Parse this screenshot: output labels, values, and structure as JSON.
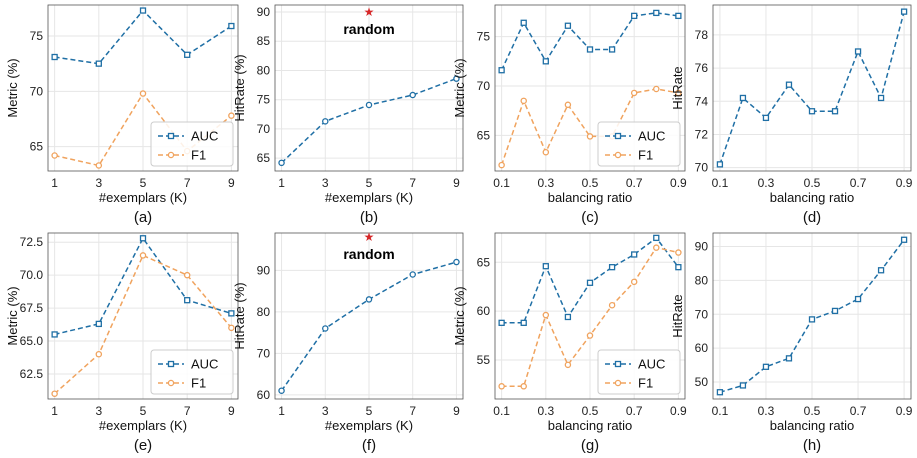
{
  "colors": {
    "auc": "#1f6fa5",
    "f1": "#f0a35e",
    "hitrate": "#1f6fa5",
    "star": "#d62728",
    "grid": "#e6e6e6"
  },
  "chart_data": [
    {
      "type": "line",
      "caption": "(a)",
      "xlabel": "#exemplars (K)",
      "ylabel": "Metric (%)",
      "x": [
        1,
        3,
        5,
        7,
        9
      ],
      "xticks": [
        1,
        3,
        5,
        7,
        9
      ],
      "xlim": [
        0.7,
        9.3
      ],
      "ylim": [
        62.8,
        77.8
      ],
      "yticks": [
        65,
        70,
        75
      ],
      "ytick_labels": [
        "65",
        "70",
        "75"
      ],
      "series": [
        {
          "name": "AUC",
          "values": [
            73.1,
            72.5,
            77.3,
            73.3,
            75.9
          ],
          "color": "#1f6fa5",
          "marker": "square"
        },
        {
          "name": "F1",
          "values": [
            64.2,
            63.3,
            69.8,
            64.6,
            67.8
          ],
          "color": "#f0a35e",
          "marker": "circle"
        }
      ],
      "legend": "bottom-right"
    },
    {
      "type": "line",
      "caption": "(b)",
      "xlabel": "#exemplars (K)",
      "ylabel": "HitRate (%)",
      "x": [
        1,
        3,
        5,
        7,
        9
      ],
      "xticks": [
        1,
        3,
        5,
        7,
        9
      ],
      "xlim": [
        0.7,
        9.3
      ],
      "ylim": [
        62.8,
        91.2
      ],
      "yticks": [
        65,
        70,
        75,
        80,
        85,
        90
      ],
      "ytick_labels": [
        "65",
        "70",
        "75",
        "80",
        "85",
        "90"
      ],
      "series": [
        {
          "name": "HitRate",
          "values": [
            64.2,
            71.3,
            74.1,
            75.8,
            78.6
          ],
          "color": "#1f6fa5",
          "marker": "circle"
        }
      ],
      "annotation": {
        "text": "random",
        "star_x": 5,
        "star_y": 90
      }
    },
    {
      "type": "line",
      "caption": "(c)",
      "xlabel": "balancing ratio",
      "ylabel": "Metric (%)",
      "x": [
        0.1,
        0.2,
        0.3,
        0.4,
        0.5,
        0.6,
        0.7,
        0.8,
        0.9
      ],
      "xticks": [
        0.1,
        0.3,
        0.5,
        0.7,
        0.9
      ],
      "xlim": [
        0.07,
        0.93
      ],
      "ylim": [
        61.4,
        78.2
      ],
      "yticks": [
        65,
        70,
        75
      ],
      "ytick_labels": [
        "65",
        "70",
        "75"
      ],
      "series": [
        {
          "name": "AUC",
          "values": [
            71.6,
            76.4,
            72.5,
            76.1,
            73.7,
            73.7,
            77.1,
            77.4,
            77.1
          ],
          "color": "#1f6fa5",
          "marker": "square"
        },
        {
          "name": "F1",
          "values": [
            62.0,
            68.5,
            63.3,
            68.1,
            64.9,
            64.9,
            69.3,
            69.7,
            69.3
          ],
          "color": "#f0a35e",
          "marker": "circle"
        }
      ],
      "legend": "bottom-right"
    },
    {
      "type": "line",
      "caption": "(d)",
      "xlabel": "balancing ratio",
      "ylabel": "HitRate",
      "x": [
        0.1,
        0.2,
        0.3,
        0.4,
        0.5,
        0.6,
        0.7,
        0.8,
        0.9
      ],
      "xticks": [
        0.1,
        0.3,
        0.5,
        0.7,
        0.9
      ],
      "xlim": [
        0.07,
        0.93
      ],
      "ylim": [
        69.8,
        79.8
      ],
      "yticks": [
        70,
        72,
        74,
        76,
        78
      ],
      "ytick_labels": [
        "70",
        "72",
        "74",
        "76",
        "78"
      ],
      "series": [
        {
          "name": "HitRate",
          "values": [
            70.2,
            74.2,
            73.0,
            75.0,
            73.4,
            73.4,
            77.0,
            74.2,
            79.4
          ],
          "color": "#1f6fa5",
          "marker": "square"
        }
      ]
    },
    {
      "type": "line",
      "caption": "(e)",
      "xlabel": "#exemplars (K)",
      "ylabel": "Metric (%)",
      "x": [
        1,
        3,
        5,
        7,
        9
      ],
      "xticks": [
        1,
        3,
        5,
        7,
        9
      ],
      "xlim": [
        0.7,
        9.3
      ],
      "ylim": [
        60.6,
        73.2
      ],
      "yticks": [
        62.5,
        65,
        67.5,
        70,
        72.5
      ],
      "ytick_labels": [
        "62.5",
        "65.0",
        "67.5",
        "70.0",
        "72.5"
      ],
      "series": [
        {
          "name": "AUC",
          "values": [
            65.5,
            66.3,
            72.8,
            68.1,
            67.1
          ],
          "color": "#1f6fa5",
          "marker": "square"
        },
        {
          "name": "F1",
          "values": [
            61.0,
            64.0,
            71.5,
            70.0,
            66.0
          ],
          "color": "#f0a35e",
          "marker": "circle"
        }
      ],
      "legend": "bottom-right"
    },
    {
      "type": "line",
      "caption": "(f)",
      "xlabel": "#exemplars (K)",
      "ylabel": "HitRate (%)",
      "x": [
        1,
        3,
        5,
        7,
        9
      ],
      "xticks": [
        1,
        3,
        5,
        7,
        9
      ],
      "xlim": [
        0.7,
        9.3
      ],
      "ylim": [
        59,
        99
      ],
      "yticks": [
        60,
        70,
        80,
        90
      ],
      "ytick_labels": [
        "60",
        "70",
        "80",
        "90"
      ],
      "series": [
        {
          "name": "HitRate",
          "values": [
            61,
            76,
            83,
            89,
            92
          ],
          "color": "#1f6fa5",
          "marker": "circle"
        }
      ],
      "annotation": {
        "text": "random",
        "star_x": 5,
        "star_y": 98
      }
    },
    {
      "type": "line",
      "caption": "(g)",
      "xlabel": "balancing ratio",
      "ylabel": "Metric (%)",
      "x": [
        0.1,
        0.2,
        0.3,
        0.4,
        0.5,
        0.6,
        0.7,
        0.8,
        0.9
      ],
      "xticks": [
        0.1,
        0.3,
        0.5,
        0.7,
        0.9
      ],
      "xlim": [
        0.07,
        0.93
      ],
      "ylim": [
        51,
        68
      ],
      "yticks": [
        55,
        60,
        65
      ],
      "ytick_labels": [
        "55",
        "60",
        "65"
      ],
      "series": [
        {
          "name": "AUC",
          "values": [
            58.8,
            58.8,
            64.6,
            59.4,
            62.9,
            64.5,
            65.8,
            67.5,
            64.5
          ],
          "color": "#1f6fa5",
          "marker": "square"
        },
        {
          "name": "F1",
          "values": [
            52.3,
            52.3,
            59.6,
            54.5,
            57.5,
            60.6,
            63.0,
            66.5,
            66.0
          ],
          "color": "#f0a35e",
          "marker": "circle"
        }
      ],
      "legend": "bottom-right"
    },
    {
      "type": "line",
      "caption": "(h)",
      "xlabel": "balancing ratio",
      "ylabel": "HitRate",
      "x": [
        0.1,
        0.2,
        0.3,
        0.4,
        0.5,
        0.6,
        0.7,
        0.8,
        0.9
      ],
      "xticks": [
        0.1,
        0.3,
        0.5,
        0.7,
        0.9
      ],
      "xlim": [
        0.07,
        0.93
      ],
      "ylim": [
        45,
        94
      ],
      "yticks": [
        50,
        60,
        70,
        80,
        90
      ],
      "ytick_labels": [
        "50",
        "60",
        "70",
        "80",
        "90"
      ],
      "series": [
        {
          "name": "HitRate",
          "values": [
            47,
            49,
            54.5,
            57,
            68.5,
            71,
            74.5,
            83,
            92
          ],
          "color": "#1f6fa5",
          "marker": "square"
        }
      ]
    }
  ]
}
